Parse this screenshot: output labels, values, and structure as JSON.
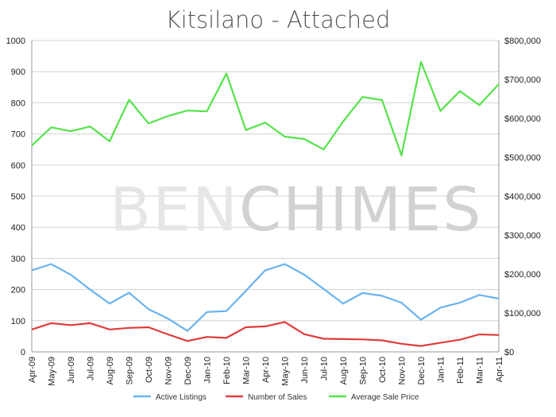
{
  "chart_data": {
    "type": "line",
    "title": "Kitsilano - Attached",
    "watermark": {
      "part1": "BEN",
      "part2": "CHIMES"
    },
    "categories": [
      "Apr-09",
      "May-09",
      "Jun-09",
      "Jul-09",
      "Aug-09",
      "Sep-09",
      "Oct-09",
      "Nov-09",
      "Dec-09",
      "Jan-10",
      "Feb-10",
      "Mar-10",
      "Apr-10",
      "May-10",
      "Jun-10",
      "Jul-10",
      "Aug-10",
      "Sep-10",
      "Oct-10",
      "Nov-10",
      "Dec-10",
      "Jan-11",
      "Feb-11",
      "Mar-11",
      "Apr-11"
    ],
    "y_left": {
      "min": 0,
      "max": 1000,
      "ticks": [
        0,
        100,
        200,
        300,
        400,
        500,
        600,
        700,
        800,
        900,
        1000
      ]
    },
    "y_right": {
      "min": 0,
      "max": 800000,
      "ticks": [
        0,
        100000,
        200000,
        300000,
        400000,
        500000,
        600000,
        700000,
        800000
      ],
      "tick_labels": [
        "$0",
        "$100,000",
        "$200,000",
        "$300,000",
        "$400,000",
        "$500,000",
        "$600,000",
        "$700,000",
        "$800,000"
      ]
    },
    "grid": true,
    "legend_position": "bottom",
    "series": [
      {
        "name": "Active Listings",
        "axis": "left",
        "color": "#6ab3f0",
        "values": [
          262,
          282,
          248,
          200,
          155,
          190,
          137,
          107,
          67,
          128,
          131,
          196,
          262,
          282,
          248,
          202,
          155,
          189,
          180,
          158,
          103,
          142,
          158,
          183,
          171
        ]
      },
      {
        "name": "Number of Sales",
        "axis": "left",
        "color": "#e03c3c",
        "values": [
          72,
          92,
          86,
          92,
          72,
          77,
          79,
          56,
          35,
          48,
          45,
          79,
          82,
          96,
          57,
          42,
          41,
          40,
          37,
          26,
          19,
          29,
          39,
          56,
          54
        ]
      },
      {
        "name": "Average Sale Price",
        "axis": "right",
        "color": "#55e34a",
        "values": [
          530000,
          577000,
          567000,
          579000,
          541000,
          648000,
          587000,
          606000,
          620000,
          618000,
          715000,
          570000,
          589000,
          553000,
          547000,
          520000,
          592000,
          655000,
          647000,
          505000,
          745000,
          619000,
          670000,
          634000,
          688000
        ]
      }
    ]
  }
}
